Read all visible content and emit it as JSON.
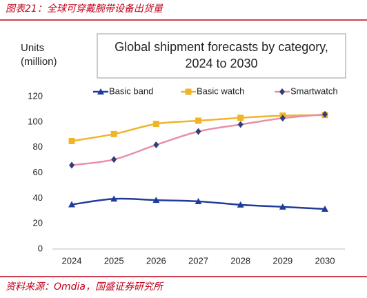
{
  "chart_data": {
    "type": "line",
    "caption": "图表21：全球可穿戴腕带设备出货量",
    "source": "资料来源：Omdia，国盛证券研究所",
    "title": [
      "Global shipment forecasts by category,",
      "2024 to 2030"
    ],
    "ylabel": [
      "Units",
      "(million)"
    ],
    "categories": [
      "2024",
      "2025",
      "2026",
      "2027",
      "2028",
      "2029",
      "2030"
    ],
    "series": [
      {
        "name": "Basic band",
        "color": "#1f3c99",
        "marker": "triangle",
        "marker_color": "#1f3c99",
        "values": [
          35,
          39.5,
          38.5,
          37.5,
          34.8,
          33.2,
          31.5
        ]
      },
      {
        "name": "Basic watch",
        "color": "#f0b429",
        "marker": "square",
        "marker_color": "#f0b429",
        "values": [
          85,
          90.5,
          98.5,
          101,
          103.3,
          105,
          105.5
        ]
      },
      {
        "name": "Smartwatch",
        "color": "#e98ea6",
        "marker": "diamond",
        "marker_color": "#2e3f7a",
        "values": [
          66,
          70.5,
          82,
          92.5,
          98,
          103,
          106
        ]
      }
    ],
    "ylim": [
      0,
      120
    ],
    "yticks": [
      0,
      20,
      40,
      60,
      80,
      100,
      120
    ]
  }
}
